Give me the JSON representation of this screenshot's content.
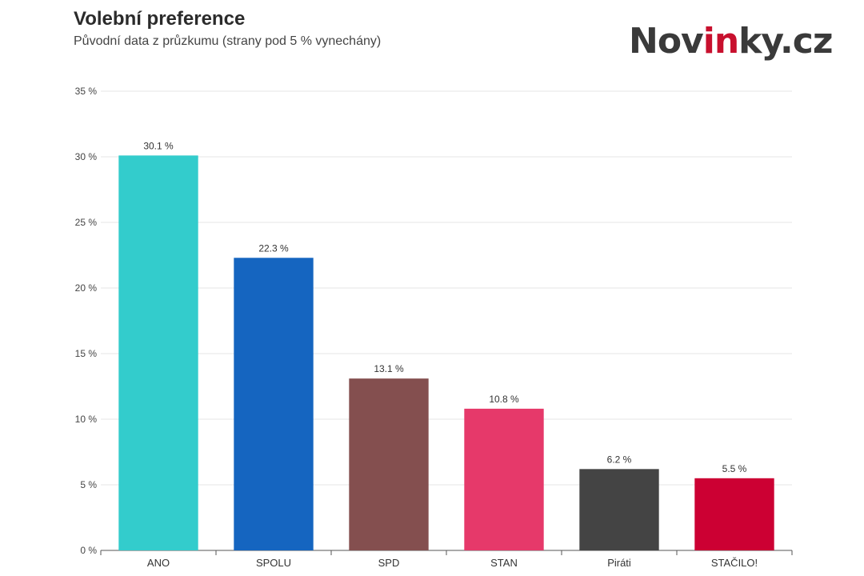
{
  "header": {
    "title": "Volební preference",
    "subtitle": "Původní data z průzkumu (strany pod 5 % vynechány)"
  },
  "logo": {
    "part1": "Nov",
    "part2": "in",
    "part3": "ky.cz",
    "accent_color": "#c8102e"
  },
  "chart_data": {
    "type": "bar",
    "title": "Volební preference",
    "subtitle": "Původní data z průzkumu (strany pod 5 % vynechány)",
    "categories": [
      "ANO",
      "SPOLU",
      "SPD",
      "STAN",
      "Piráti",
      "STAČILO!"
    ],
    "values": [
      30.1,
      22.3,
      13.1,
      10.8,
      6.2,
      5.5
    ],
    "value_labels": [
      "30.1 %",
      "22.3 %",
      "13.1 %",
      "10.8 %",
      "6.2 %",
      "5.5 %"
    ],
    "colors": [
      "#33cccc",
      "#1565c0",
      "#844f4f",
      "#e6396a",
      "#444444",
      "#cc0033"
    ],
    "ylim": [
      0,
      35
    ],
    "yticks": [
      0,
      5,
      10,
      15,
      20,
      25,
      30,
      35
    ],
    "ytick_labels": [
      "0 %",
      "5 %",
      "10 %",
      "15 %",
      "20 %",
      "25 %",
      "30 %",
      "35 %"
    ],
    "grid": true,
    "xlabel": "",
    "ylabel": ""
  }
}
